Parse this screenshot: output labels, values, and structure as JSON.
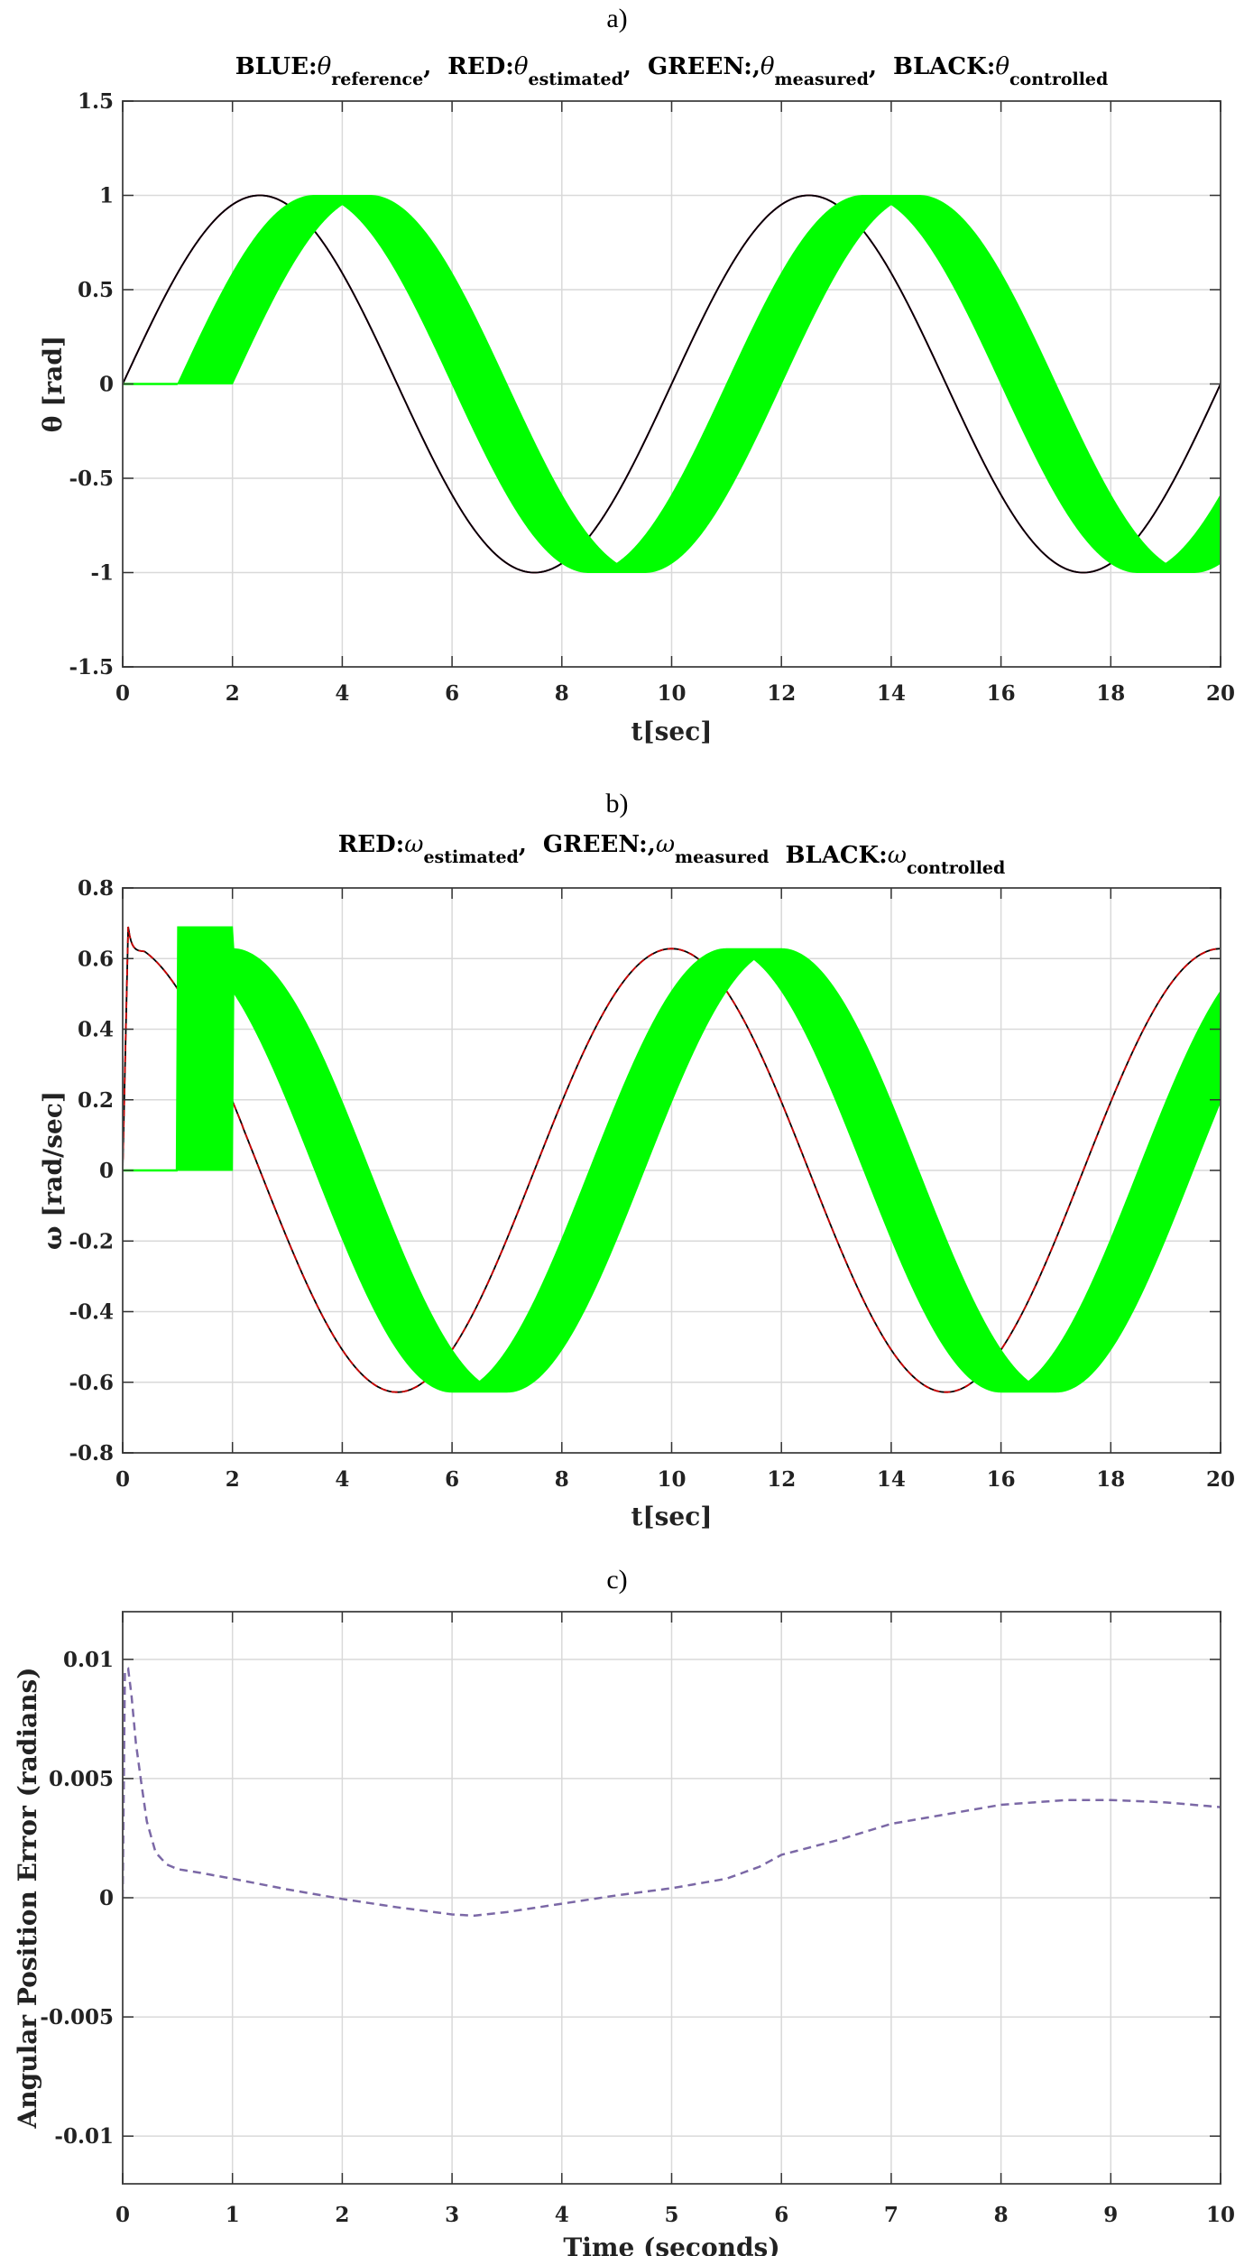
{
  "figure": {
    "panels": [
      {
        "id": "a",
        "label": "a)"
      },
      {
        "id": "b",
        "label": "b)"
      },
      {
        "id": "c",
        "label": "c)"
      }
    ]
  },
  "chart_data": [
    {
      "panel": "a)",
      "type": "line",
      "title_parts": [
        {
          "text": "BLUE:",
          "sym": "θ",
          "sub": "reference",
          "sep": ","
        },
        {
          "text": "RED:",
          "sym": "θ",
          "sub": "estimated",
          "sep": ","
        },
        {
          "text": "GREEN:,",
          "sym": "θ",
          "sub": "measured",
          "sep": ","
        },
        {
          "text": "BLACK:",
          "sym": "θ",
          "sub": "controlled",
          "sep": ""
        }
      ],
      "xlabel": "t[sec]",
      "ylabel": "θ [rad]",
      "xlim": [
        0,
        20
      ],
      "ylim": [
        -1.5,
        1.5
      ],
      "xticks": [
        0,
        2,
        4,
        6,
        8,
        10,
        12,
        14,
        16,
        18,
        20
      ],
      "yticks": [
        -1.5,
        -1,
        -0.5,
        0,
        0.5,
        1,
        1.5
      ],
      "ytick_labels": [
        "-1.5",
        "-1",
        "-0.5",
        "0",
        "0.5",
        "1",
        "1.5"
      ],
      "grid": true,
      "series": [
        {
          "name": "reference",
          "color": "#0000ff",
          "model": "sin",
          "amplitude": 1,
          "period": 10,
          "x": [
            0,
            2.5,
            5,
            7.5,
            10,
            12.5,
            15,
            17.5,
            20
          ],
          "y": [
            0,
            1,
            0,
            -1,
            0,
            1,
            0,
            -1,
            0
          ]
        },
        {
          "name": "estimated",
          "color": "#ff0000",
          "model": "sin",
          "amplitude": 1,
          "period": 10,
          "x": [
            0,
            2.5,
            5,
            7.5,
            10,
            12.5,
            15,
            17.5,
            20
          ],
          "y": [
            0,
            1,
            0,
            -1,
            0,
            1,
            0,
            -1,
            0
          ]
        },
        {
          "name": "controlled",
          "color": "#000000",
          "model": "sin",
          "amplitude": 1,
          "period": 10,
          "x": [
            0,
            2.5,
            5,
            7.5,
            10,
            12.5,
            15,
            17.5,
            20
          ],
          "y": [
            0,
            1,
            0,
            -1,
            0,
            1,
            0,
            -1,
            0
          ]
        },
        {
          "name": "measured",
          "color": "#00ff00",
          "model": "band-delayed-sin",
          "amplitude": 1,
          "period": 10,
          "delay_range": [
            1,
            2
          ],
          "x": [
            0,
            1,
            2,
            3.5,
            4,
            4.5,
            7.5,
            9,
            9.5,
            12,
            14,
            14.5,
            17.5,
            19,
            20
          ],
          "y_upper": [
            0,
            0,
            0.59,
            1,
            1,
            1,
            -0.71,
            -0.95,
            -1,
            0.59,
            1,
            1,
            -0.71,
            -0.95,
            -0.59
          ],
          "y_lower": [
            0,
            0,
            0,
            0.71,
            0.95,
            0.81,
            -1,
            -1,
            -0.95,
            0,
            0.95,
            0.81,
            -1,
            -1,
            -0.95
          ]
        }
      ]
    },
    {
      "panel": "b)",
      "type": "line",
      "title_parts": [
        {
          "text": "RED:",
          "sym": "ω",
          "sub": "estimated",
          "sep": ","
        },
        {
          "text": "GREEN:,",
          "sym": "ω",
          "sub": "measured",
          "sep": ""
        },
        {
          "text": "BLACK:",
          "sym": "ω",
          "sub": "controlled",
          "sep": ""
        }
      ],
      "xlabel": "t[sec]",
      "ylabel": "ω [rad/sec]",
      "xlim": [
        0,
        20
      ],
      "ylim": [
        -0.8,
        0.8
      ],
      "xticks": [
        0,
        2,
        4,
        6,
        8,
        10,
        12,
        14,
        16,
        18,
        20
      ],
      "yticks": [
        -0.8,
        -0.6,
        -0.4,
        -0.2,
        0,
        0.2,
        0.4,
        0.6,
        0.8
      ],
      "ytick_labels": [
        "-0.8",
        "-0.6",
        "-0.4",
        "-0.2",
        "0",
        "0.2",
        "0.4",
        "0.6",
        "0.8"
      ],
      "grid": true,
      "series": [
        {
          "name": "controlled",
          "color": "#000000",
          "x": [
            0,
            0.1,
            0.2,
            0.4,
            0.7,
            1.0,
            1.5,
            2.0,
            3.0,
            4.0,
            5.0,
            6.0,
            7.5,
            10.0,
            12.5,
            15.0,
            17.5,
            20.0
          ],
          "y": [
            0,
            0.69,
            0.64,
            0.62,
            0.6,
            0.56,
            0.48,
            0.2,
            -0.19,
            -0.51,
            -0.628,
            -0.51,
            0,
            0.628,
            0,
            -0.628,
            0,
            0.628
          ]
        },
        {
          "name": "estimated",
          "color": "#cc0000",
          "dashed_segments": true,
          "x": [
            0,
            0.1,
            0.2,
            0.4,
            0.7,
            1.0,
            1.5,
            2.0,
            3.0,
            4.0,
            5.0,
            6.0,
            7.5,
            10.0,
            12.5,
            15.0,
            17.5,
            20.0
          ],
          "y": [
            0,
            0.69,
            0.64,
            0.62,
            0.6,
            0.56,
            0.48,
            0.2,
            -0.19,
            -0.51,
            -0.628,
            -0.51,
            0,
            0.628,
            0,
            -0.628,
            0,
            0.628
          ]
        },
        {
          "name": "measured",
          "color": "#00ff00",
          "model": "band-delayed-cos",
          "amplitude": 0.628,
          "period": 10,
          "delay_range": [
            1,
            2
          ],
          "burst": {
            "t": [
              1,
              2
            ],
            "ymax": 0.69
          },
          "x": [
            0,
            1,
            2,
            2.2,
            4,
            6,
            6.5,
            7,
            11,
            11.5,
            12,
            16,
            16.5,
            17,
            20
          ],
          "y_upper": [
            0,
            0.69,
            0.69,
            0.62,
            0.2,
            -0.51,
            -0.59,
            -0.628,
            0.628,
            0.628,
            0.628,
            -0.51,
            -0.59,
            -0.628,
            0.51
          ],
          "y_lower": [
            0,
            0,
            0,
            0.46,
            0,
            -0.59,
            -0.628,
            -0.628,
            0.59,
            0.628,
            0.51,
            -0.628,
            -0.628,
            -0.59,
            0.19
          ]
        }
      ]
    },
    {
      "panel": "c)",
      "type": "line",
      "title": "",
      "xlabel": "Time (seconds)",
      "ylabel": "Angular Position Error (radians)",
      "xlim": [
        0,
        10
      ],
      "ylim": [
        -0.012,
        0.012
      ],
      "xticks": [
        0,
        1,
        2,
        3,
        4,
        5,
        6,
        7,
        8,
        9,
        10
      ],
      "yticks": [
        -0.01,
        -0.005,
        0,
        0.005,
        0.01
      ],
      "ytick_labels": [
        "-0.01",
        "-0.005",
        "0",
        "0.005",
        "0.01"
      ],
      "grid": true,
      "series": [
        {
          "name": "error",
          "color": "#7b68a6",
          "style": "dashed",
          "x": [
            0,
            0.02,
            0.05,
            0.08,
            0.12,
            0.17,
            0.22,
            0.3,
            0.4,
            0.5,
            0.7,
            1.0,
            1.5,
            2.0,
            2.5,
            3.0,
            3.2,
            3.5,
            4.0,
            4.5,
            5.0,
            5.5,
            5.8,
            6.0,
            6.5,
            7.0,
            7.5,
            8.0,
            8.6,
            9.0,
            9.5,
            10.0
          ],
          "y": [
            0,
            0.0095,
            0.0096,
            0.0085,
            0.0065,
            0.0048,
            0.0032,
            0.0019,
            0.0014,
            0.0012,
            0.00105,
            0.0008,
            0.00035,
            -5e-05,
            -0.0004,
            -0.0007,
            -0.00075,
            -0.0006,
            -0.00025,
            0.0001,
            0.0004,
            0.0008,
            0.0013,
            0.0018,
            0.0024,
            0.0031,
            0.0035,
            0.0039,
            0.0041,
            0.0041,
            0.004,
            0.0038
          ]
        }
      ]
    }
  ]
}
